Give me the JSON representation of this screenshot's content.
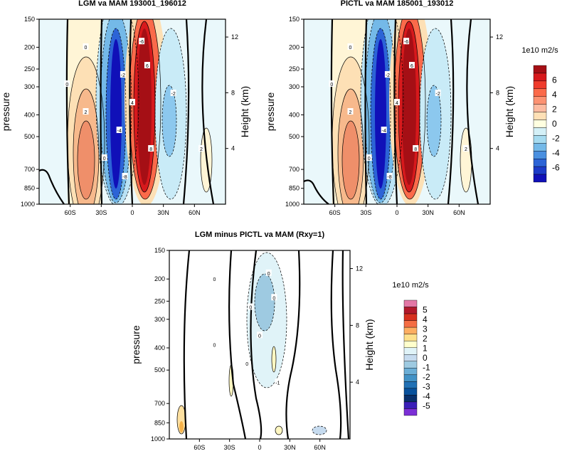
{
  "chart_data": [
    {
      "type": "contour",
      "title": "LGM va MAM 193001_196012",
      "ylabel": "pressure",
      "y2label": "Height (km)",
      "x_ticks": [
        "60S",
        "30S",
        "0",
        "30N",
        "60N"
      ],
      "y_ticks": [
        "150",
        "200",
        "250",
        "300",
        "400",
        "500",
        "700",
        "850",
        "1000"
      ],
      "y2_ticks": [
        "12",
        "8",
        "4"
      ],
      "colorbar": {
        "units": "1e10 m2/s",
        "labels": [
          "6",
          "4",
          "2",
          "0",
          "-2",
          "-4",
          "-6"
        ],
        "colors": [
          "#a50f15",
          "#d7191c",
          "#ef3b2c",
          "#fb6a4a",
          "#fc9272",
          "#fcbba1",
          "#fee0b6",
          "#ffffe0",
          "#d4f0f7",
          "#a6dbf0",
          "#74b9e8",
          "#4a90e0",
          "#2c64d6",
          "#1c3bc8",
          "#1010b8"
        ]
      },
      "contour_labels": [
        "0",
        "2",
        "4",
        "6",
        "8",
        "-2",
        "-4",
        "-6",
        "-8",
        "0",
        "-2",
        "2",
        "0"
      ]
    },
    {
      "type": "contour",
      "title": "PICTL va MAM 185001_193012",
      "ylabel": "pressure",
      "y2label": "Height (km)",
      "x_ticks": [
        "60S",
        "30S",
        "0",
        "30N",
        "60N"
      ],
      "y_ticks": [
        "150",
        "200",
        "250",
        "300",
        "400",
        "500",
        "700",
        "850",
        "1000"
      ],
      "y2_ticks": [
        "12",
        "8",
        "4"
      ],
      "contour_labels": [
        "0",
        "2",
        "4",
        "6",
        "8",
        "-2",
        "-4",
        "-6",
        "-8",
        "0",
        "-2",
        "2",
        "0"
      ]
    },
    {
      "type": "contour",
      "title": "LGM minus PICTL va MAM (Rxy=1)",
      "ylabel": "pressure",
      "y2label": "Height (km)",
      "x_ticks": [
        "60S",
        "30S",
        "0",
        "30N",
        "60N"
      ],
      "y_ticks": [
        "150",
        "200",
        "250",
        "300",
        "400",
        "500",
        "700",
        "850",
        "1000"
      ],
      "y2_ticks": [
        "12",
        "8",
        "4"
      ],
      "colorbar": {
        "units": "1e10 m2/s",
        "labels": [
          "5",
          "4",
          "3",
          "2",
          "1",
          "0",
          "-1",
          "-2",
          "-3",
          "-4",
          "-5"
        ],
        "colors": [
          "#e377a6",
          "#b2182b",
          "#d7301f",
          "#f46d43",
          "#fdae61",
          "#fee08b",
          "#ffffcc",
          "#e0f3f8",
          "#c6dbef",
          "#9ecae1",
          "#6baed6",
          "#4292c6",
          "#2171b5",
          "#08519c",
          "#08306b",
          "#3a1fb8",
          "#7b2fd6"
        ]
      },
      "contour_labels": [
        "0",
        "0",
        "0",
        "0",
        "-1",
        "0",
        "0",
        "0"
      ]
    }
  ]
}
